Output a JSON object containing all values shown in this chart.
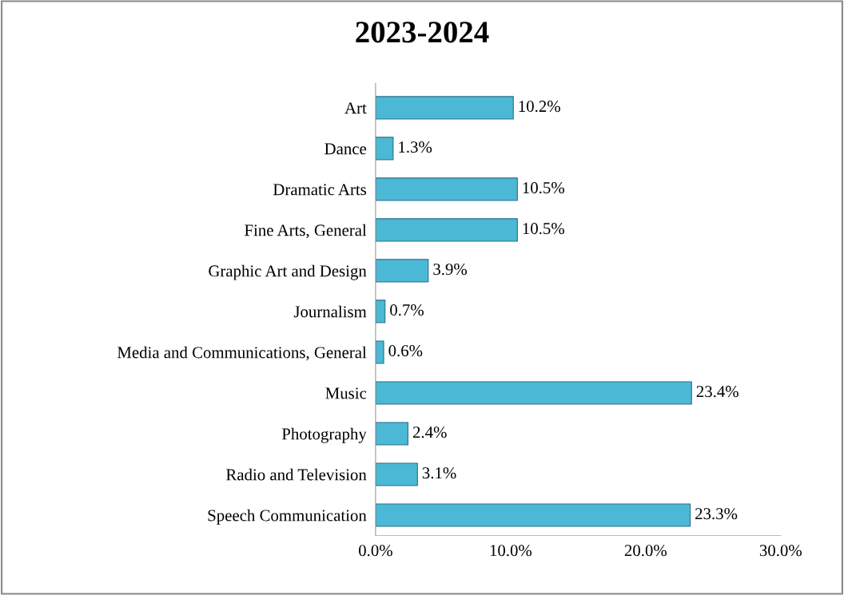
{
  "chart_data": {
    "type": "bar",
    "orientation": "horizontal",
    "title": "2023-2024",
    "categories": [
      "Art",
      "Dance",
      "Dramatic Arts",
      "Fine Arts, General",
      "Graphic Art and Design",
      "Journalism",
      "Media and Communications, General",
      "Music",
      "Photography",
      "Radio and Television",
      "Speech Communication"
    ],
    "values": [
      10.2,
      1.3,
      10.5,
      10.5,
      3.9,
      0.7,
      0.6,
      23.4,
      2.4,
      3.1,
      23.3
    ],
    "value_labels": [
      "10.2%",
      "1.3%",
      "10.5%",
      "10.5%",
      "3.9%",
      "0.7%",
      "0.6%",
      "23.4%",
      "2.4%",
      "3.1%",
      "23.3%"
    ],
    "color": "#4bb8d6",
    "xlim": [
      0,
      30
    ],
    "xticks": [
      {
        "value": 0,
        "label": "0.0%"
      },
      {
        "value": 10,
        "label": "10.0%"
      },
      {
        "value": 20,
        "label": "20.0%"
      },
      {
        "value": 30,
        "label": "30.0%"
      }
    ],
    "grid": false,
    "legend": false
  }
}
